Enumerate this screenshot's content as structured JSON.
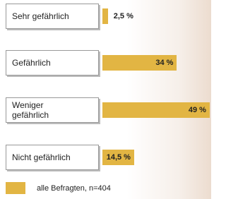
{
  "chart_data": {
    "type": "bar",
    "orientation": "horizontal",
    "categories": [
      "Sehr gefährlich",
      "Gefährlich",
      "Weniger\ngefährlich",
      "Nicht gefährlich"
    ],
    "series": [
      {
        "name": "alle Befragten, n=404",
        "color": "#e2b543",
        "values": [
          2.5,
          34,
          49,
          14.5
        ],
        "value_labels": [
          "2,5 %",
          "34 %",
          "49 %",
          "14,5 %"
        ]
      }
    ]
  }
}
